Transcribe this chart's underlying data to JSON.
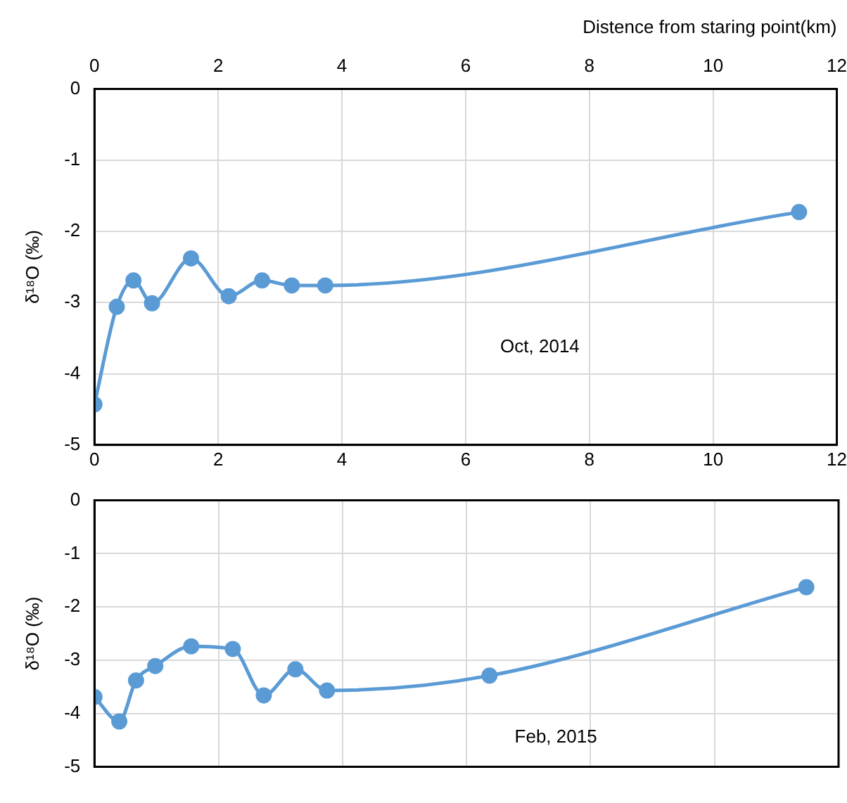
{
  "chart_data": [
    {
      "type": "line",
      "x2label": "Distence from staring point(km)",
      "ylabel": "δ¹⁸O (‰)",
      "annotations": [
        "Oct, 2014"
      ],
      "x": [
        0,
        0.36,
        0.63,
        0.93,
        1.56,
        2.17,
        2.71,
        3.19,
        3.73,
        11.39
      ],
      "series": [
        {
          "color": "#5b9bd5",
          "values": [
            -4.43,
            -3.06,
            -2.69,
            -3.01,
            -2.38,
            -2.91,
            -2.69,
            -2.76,
            -2.76,
            -1.73
          ]
        }
      ],
      "xlim": [
        0,
        12
      ],
      "xticks": [
        0,
        2,
        4,
        6,
        8,
        10,
        12
      ],
      "x2lim": [
        0,
        12
      ],
      "x2ticks": [
        0,
        2,
        4,
        6,
        8,
        10,
        12
      ],
      "ylim": [
        -5,
        0
      ],
      "yticks": [
        -5,
        -4,
        -3,
        -2,
        -1,
        0
      ],
      "grid": true,
      "marker": "circle"
    },
    {
      "type": "line",
      "ylabel": "δ¹⁸O (‰)",
      "annotations": [
        "Feb, 2015"
      ],
      "x": [
        0,
        0.4,
        0.67,
        0.98,
        1.56,
        2.23,
        2.73,
        3.24,
        3.75,
        6.37,
        11.48
      ],
      "series": [
        {
          "color": "#5b9bd5",
          "values": [
            -3.69,
            -4.15,
            -3.38,
            -3.11,
            -2.74,
            -2.79,
            -3.66,
            -3.17,
            -3.57,
            -3.29,
            -1.63
          ]
        }
      ],
      "xlim": [
        0,
        12
      ],
      "xticks": [
        0,
        2,
        4,
        6,
        8,
        10,
        12
      ],
      "ylim": [
        -5,
        0
      ],
      "yticks": [
        -5,
        -4,
        -3,
        -2,
        -1,
        0
      ],
      "grid": true,
      "marker": "circle",
      "tick_labels": "y"
    }
  ]
}
